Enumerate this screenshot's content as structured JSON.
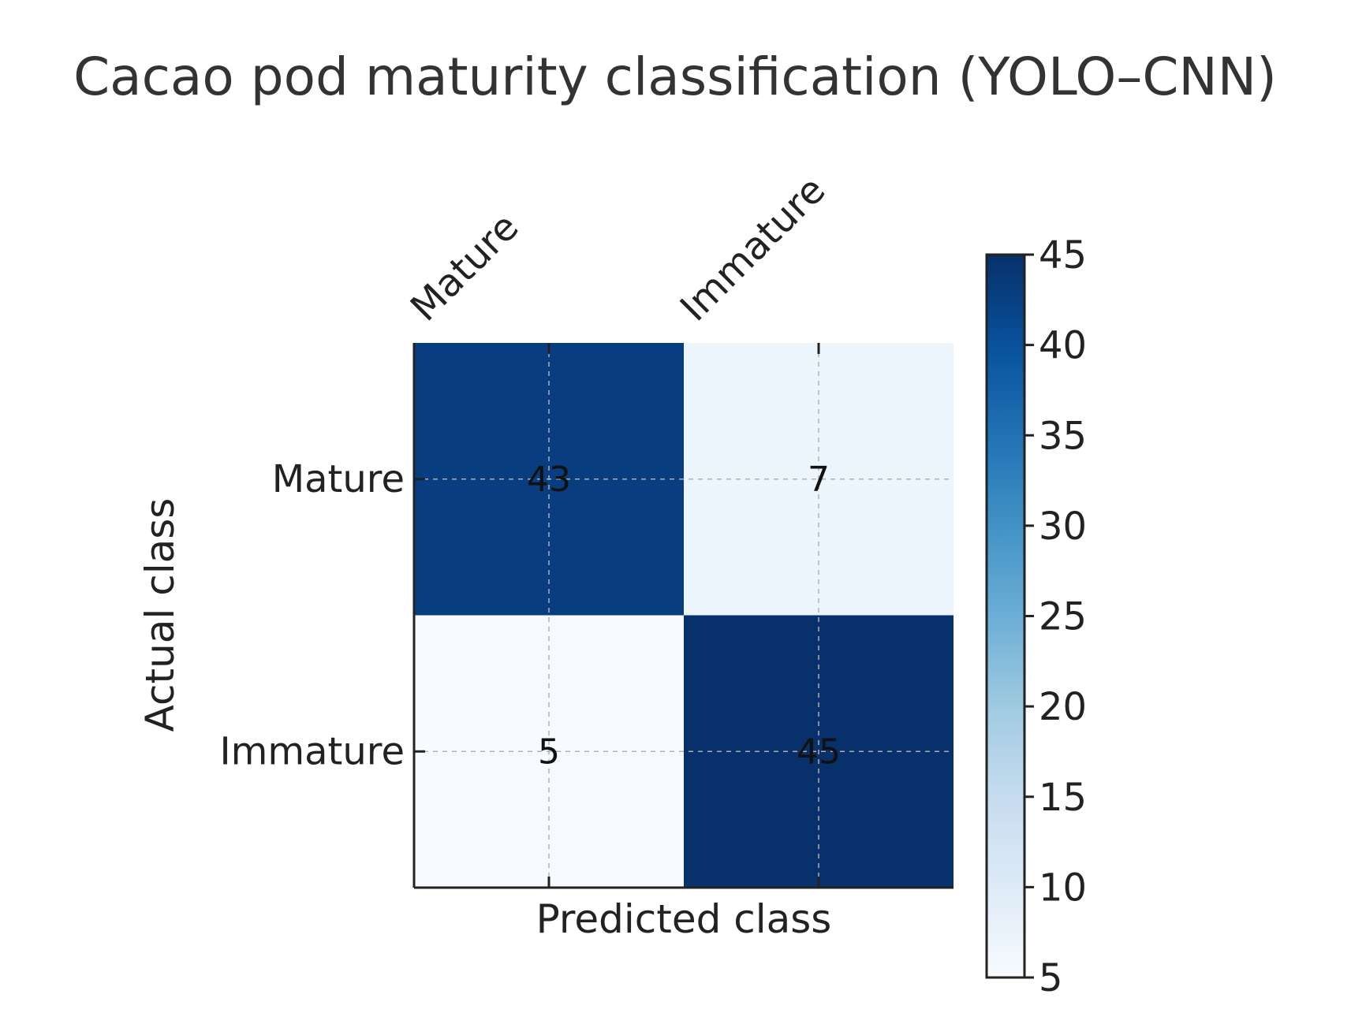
{
  "chart_data": {
    "type": "heatmap",
    "title": "Cacao pod maturity classification (YOLO–CNN)",
    "xlabel": "Predicted class",
    "ylabel": "Actual class",
    "x_categories": [
      "Mature",
      "Immature"
    ],
    "y_categories": [
      "Mature",
      "Immature"
    ],
    "values": [
      [
        43,
        7
      ],
      [
        5,
        45
      ]
    ],
    "colormap": "Blues",
    "colorbar": {
      "min": 5,
      "max": 45,
      "ticks": [
        "5",
        "10",
        "15",
        "20",
        "25",
        "30",
        "35",
        "40",
        "45"
      ]
    },
    "grid": true,
    "colors": {
      "low": "#f7fbff",
      "high": "#08306b"
    }
  }
}
